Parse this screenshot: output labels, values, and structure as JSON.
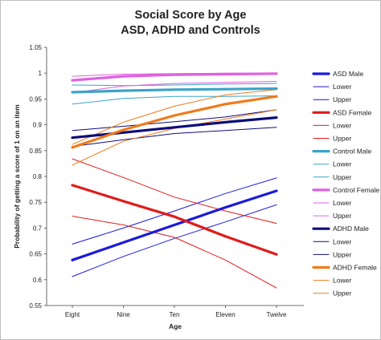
{
  "chart_data": {
    "type": "line",
    "title": [
      "Social Score by Age",
      "ASD, ADHD and Controls"
    ],
    "xlabel": "Age",
    "ylabel": "Probability of getting a score of 1 on an item",
    "categories": [
      "Eight",
      "Nine",
      "Ten",
      "Eleven",
      "Twelve"
    ],
    "ylim": [
      0.55,
      1.05
    ],
    "yticks": [
      "0.55",
      "0.6",
      "0.65",
      "0.7",
      "0.75",
      "0.8",
      "0.85",
      "0.9",
      "0.95",
      "1",
      "1.05"
    ],
    "grid": false,
    "legend_position": "right",
    "series": [
      {
        "name": "ASD Male",
        "color": "#1a1adb",
        "weight": "thick",
        "values": [
          0.638,
          0.672,
          0.706,
          0.74,
          0.772
        ]
      },
      {
        "name": "Lower",
        "color": "#1a1adb",
        "weight": "thin",
        "values": [
          0.606,
          0.645,
          0.68,
          0.712,
          0.745
        ]
      },
      {
        "name": "Upper",
        "color": "#1a1adb",
        "weight": "thin",
        "values": [
          0.669,
          0.7,
          0.733,
          0.767,
          0.797
        ]
      },
      {
        "name": "ASD Female",
        "color": "#e01b1b",
        "weight": "thick",
        "values": [
          0.783,
          0.752,
          0.722,
          0.684,
          0.649
        ]
      },
      {
        "name": "Lower",
        "color": "#e01b1b",
        "weight": "thin",
        "values": [
          0.723,
          0.706,
          0.682,
          0.638,
          0.584
        ]
      },
      {
        "name": "Upper",
        "color": "#e01b1b",
        "weight": "thin",
        "values": [
          0.834,
          0.798,
          0.76,
          0.733,
          0.709
        ]
      },
      {
        "name": "Control Male",
        "color": "#3aa3c9",
        "weight": "thick",
        "values": [
          0.963,
          0.966,
          0.968,
          0.969,
          0.97
        ]
      },
      {
        "name": "Lower",
        "color": "#3aa3c9",
        "weight": "thin",
        "values": [
          0.94,
          0.951,
          0.955,
          0.955,
          0.956
        ]
      },
      {
        "name": "Upper",
        "color": "#3aa3c9",
        "weight": "thin",
        "values": [
          0.977,
          0.976,
          0.977,
          0.979,
          0.98
        ]
      },
      {
        "name": "Control Female",
        "color": "#e060e0",
        "weight": "thick",
        "values": [
          0.986,
          0.994,
          0.997,
          0.998,
          0.999
        ]
      },
      {
        "name": "Lower",
        "color": "#e060e0",
        "weight": "thin",
        "values": [
          0.962,
          0.975,
          0.98,
          0.982,
          0.984
        ]
      },
      {
        "name": "Upper",
        "color": "#e060e0",
        "weight": "thin",
        "values": [
          0.994,
          0.998,
          0.999,
          1.0,
          1.0
        ]
      },
      {
        "name": "ADHD Male",
        "color": "#0d0d7a",
        "weight": "thick",
        "values": [
          0.875,
          0.885,
          0.895,
          0.905,
          0.914
        ]
      },
      {
        "name": "Lower",
        "color": "#0d0d7a",
        "weight": "thin",
        "values": [
          0.858,
          0.871,
          0.883,
          0.889,
          0.895
        ]
      },
      {
        "name": "Upper",
        "color": "#0d0d7a",
        "weight": "thin",
        "values": [
          0.889,
          0.897,
          0.906,
          0.915,
          0.929
        ]
      },
      {
        "name": "ADHD Female",
        "color": "#f07a1a",
        "weight": "thick",
        "values": [
          0.856,
          0.89,
          0.918,
          0.94,
          0.955
        ]
      },
      {
        "name": "Lower",
        "color": "#f07a1a",
        "weight": "thin",
        "values": [
          0.822,
          0.868,
          0.893,
          0.911,
          0.929
        ]
      },
      {
        "name": "Upper",
        "color": "#f07a1a",
        "weight": "thin",
        "values": [
          0.862,
          0.905,
          0.936,
          0.958,
          0.968
        ]
      }
    ]
  }
}
